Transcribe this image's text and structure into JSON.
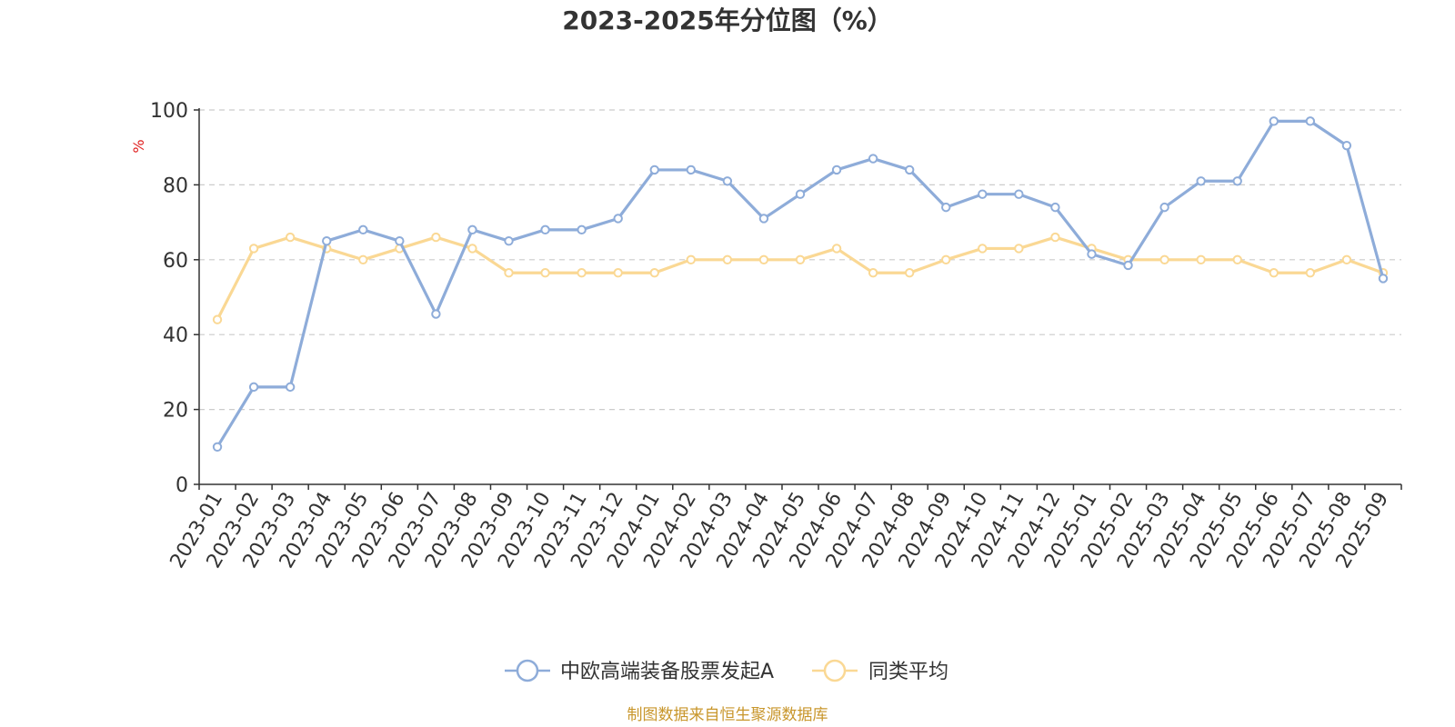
{
  "chart_data": {
    "type": "line",
    "title": "2023-2025年分位图（%）",
    "ylabel": "%",
    "ylim": [
      0,
      100
    ],
    "yticks": [
      0,
      20,
      40,
      60,
      80,
      100
    ],
    "grid": true,
    "legend_position": "bottom",
    "categories": [
      "2023-01",
      "2023-02",
      "2023-03",
      "2023-04",
      "2023-05",
      "2023-06",
      "2023-07",
      "2023-08",
      "2023-09",
      "2023-10",
      "2023-11",
      "2023-12",
      "2024-01",
      "2024-02",
      "2024-03",
      "2024-04",
      "2024-05",
      "2024-06",
      "2024-07",
      "2024-08",
      "2024-09",
      "2024-10",
      "2024-11",
      "2024-12",
      "2025-01",
      "2025-02",
      "2025-03",
      "2025-04",
      "2025-05",
      "2025-06",
      "2025-07",
      "2025-08",
      "2025-09"
    ],
    "series": [
      {
        "name": "中欧高端装备股票发起A",
        "color": "#8eacd9",
        "values": [
          10,
          26,
          26,
          65,
          68,
          65,
          45.5,
          68,
          65,
          68,
          68,
          71,
          84,
          84,
          81,
          71,
          77.5,
          84,
          87,
          84,
          74,
          77.5,
          77.5,
          74,
          61.5,
          58.5,
          74,
          81,
          81,
          97,
          97,
          90.5,
          55
        ]
      },
      {
        "name": "同类平均",
        "color": "#fad894",
        "values": [
          44,
          63,
          66,
          63,
          60,
          63,
          66,
          63,
          56.5,
          56.5,
          56.5,
          56.5,
          56.5,
          60,
          60,
          60,
          60,
          63,
          56.5,
          56.5,
          60,
          63,
          63,
          66,
          63,
          60,
          60,
          60,
          60,
          56.5,
          56.5,
          60,
          56.5
        ]
      }
    ]
  },
  "source": "制图数据来自恒生聚源数据库"
}
